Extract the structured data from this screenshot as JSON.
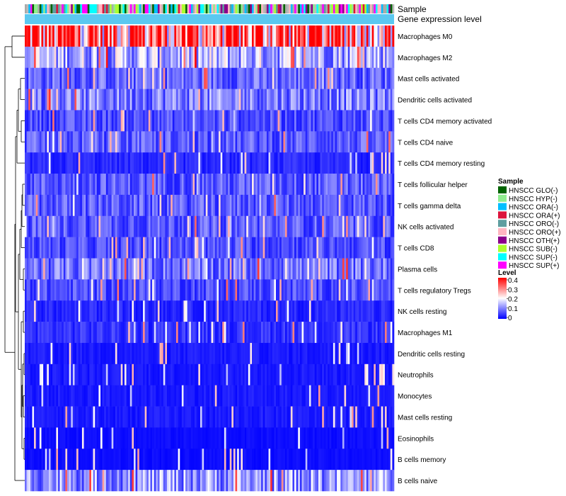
{
  "chart_data": {
    "type": "heatmap",
    "annotation_tracks": [
      "Sample",
      "Gene expression level"
    ],
    "rows": [
      "Macrophages M0",
      "Macrophages M2",
      "Mast cells activated",
      "Dendritic cells activated",
      "T cells CD4 memory activated",
      "T cells CD4 naive",
      "T cells CD4 memory resting",
      "T cells follicular helper",
      "T cells gamma delta",
      "NK cells activated",
      "T cells CD8",
      "Plasma cells",
      "T cells regulatory  Tregs",
      "NK cells resting",
      "Macrophages M1",
      "Dendritic cells resting",
      "Neutrophils",
      "Monocytes",
      "Mast cells resting",
      "Eosinophils",
      "B cells memory",
      "B cells naive"
    ],
    "row_mean_level": [
      0.32,
      0.14,
      0.08,
      0.1,
      0.06,
      0.07,
      0.03,
      0.07,
      0.07,
      0.07,
      0.06,
      0.09,
      0.06,
      0.03,
      0.04,
      0.02,
      0.02,
      0.02,
      0.02,
      0.01,
      0.01,
      0.12
    ],
    "column_count": 200,
    "sample_legend_title": "Sample",
    "sample_legend": [
      {
        "label": "HNSCC GLO(-)",
        "color": "#006400"
      },
      {
        "label": "HNSCC HYP(-)",
        "color": "#90EE90"
      },
      {
        "label": "HNSCC ORA(-)",
        "color": "#00BFFF"
      },
      {
        "label": "HNSCC ORA(+)",
        "color": "#DC143C"
      },
      {
        "label": "HNSCC ORO(-)",
        "color": "#5F9EA0"
      },
      {
        "label": "HNSCC ORO(+)",
        "color": "#FFB6C1"
      },
      {
        "label": "HNSCC OTH(+)",
        "color": "#8B008B"
      },
      {
        "label": "HNSCC SUB(-)",
        "color": "#ADFF2F"
      },
      {
        "label": "HNSCC SUP(-)",
        "color": "#00FFFF"
      },
      {
        "label": "HNSCC SUP(+)",
        "color": "#FF00FF"
      }
    ],
    "level_legend_title": "Level",
    "level_ticks": [
      "0.4",
      "0.3",
      "0.2",
      "0.1",
      "0"
    ],
    "level_range": [
      0,
      0.4
    ],
    "color_low": "#0000FF",
    "color_mid": "#FFFFFF",
    "color_high": "#FF0000",
    "gene_expression_color": "#5BC8F0"
  }
}
